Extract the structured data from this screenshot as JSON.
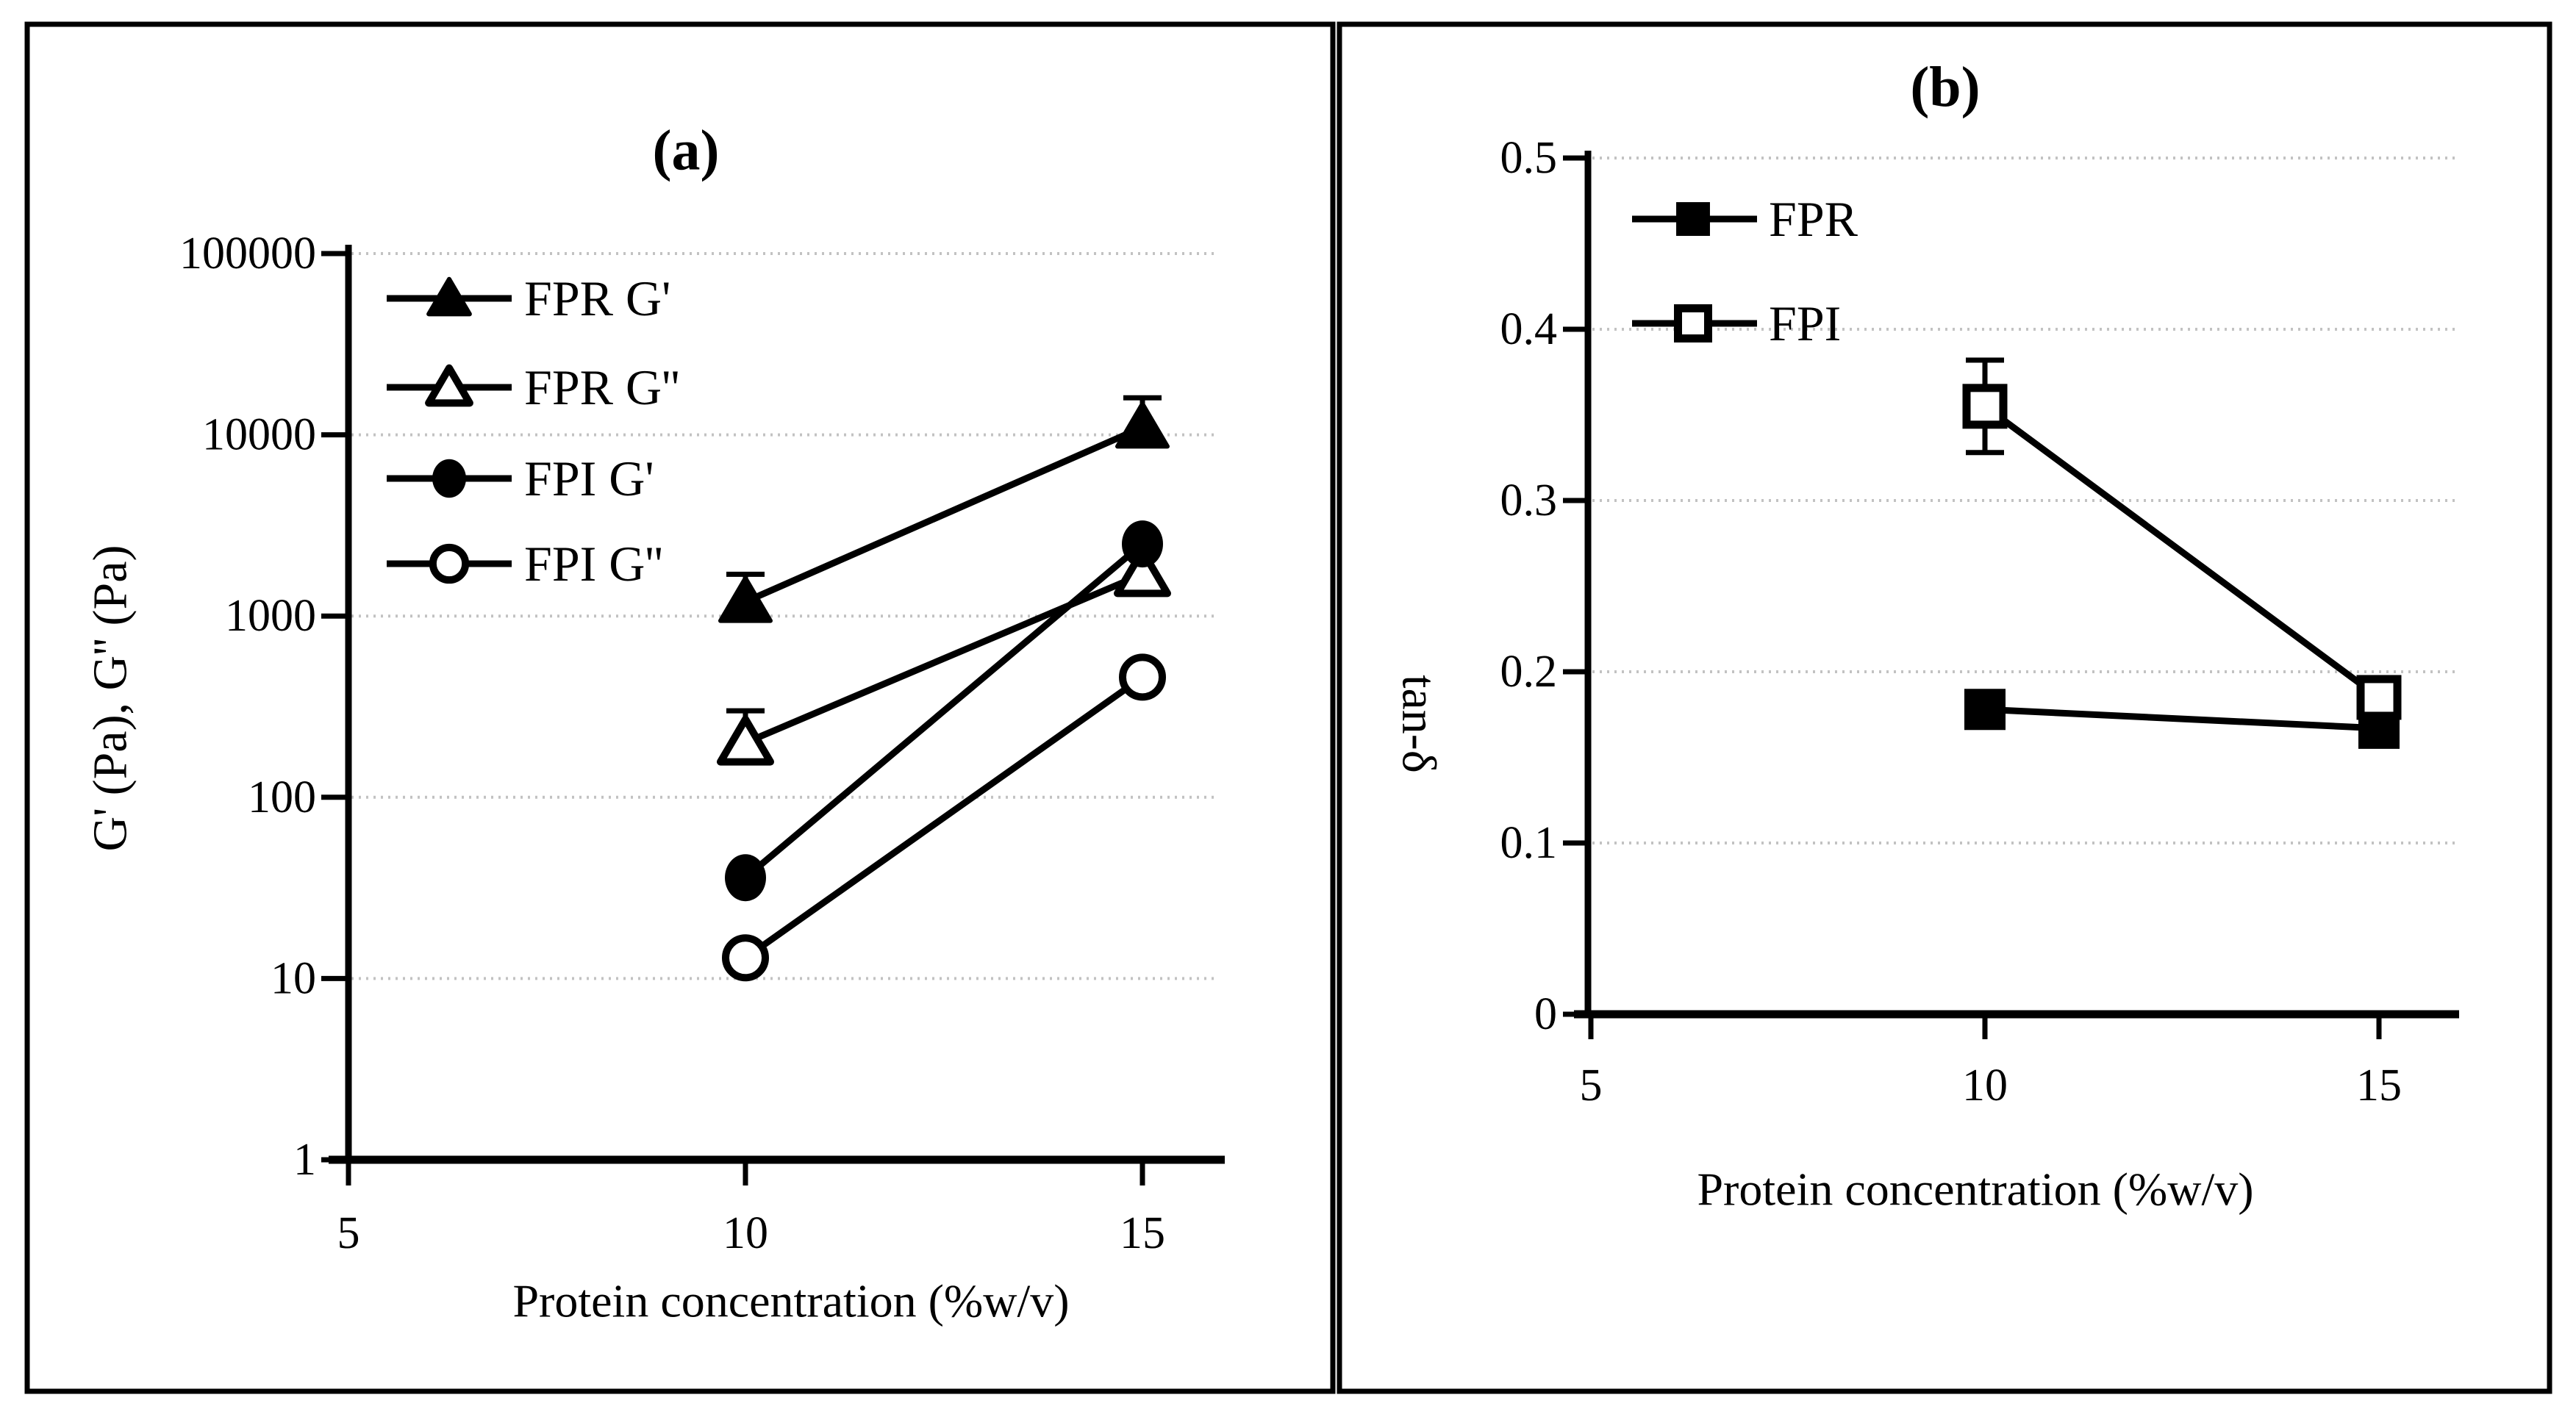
{
  "figure": {
    "background": "#ffffff",
    "frame_color": "#000000",
    "grid_color": "#c2c2c2",
    "series_color": "#000000"
  },
  "chart_data": [
    {
      "type": "line",
      "panel": "a",
      "title": "(a)",
      "xlabel": "Protein concentration (%w/v)",
      "ylabel": "G' (Pa), G'' (Pa)",
      "y_scale": "log",
      "ylim": [
        1,
        100000
      ],
      "xlim": [
        5,
        16
      ],
      "x_ticks": [
        5,
        10,
        15
      ],
      "x_tick_labels": [
        "5",
        "10",
        "15"
      ],
      "y_ticks": [
        1,
        10,
        100,
        1000,
        10000,
        100000
      ],
      "y_tick_labels": [
        "1",
        "10",
        "100",
        "1000",
        "10000",
        "100000"
      ],
      "grid": "horizontal-dotted",
      "legend_position": "upper-left-inside",
      "x": [
        10,
        15
      ],
      "series": [
        {
          "name": "FPR G'",
          "marker": "triangle-filled",
          "values": [
            1200,
            11000
          ],
          "err_upper": [
            1700,
            16000
          ]
        },
        {
          "name": "FPR G''",
          "marker": "triangle-open",
          "values": [
            200,
            1700
          ],
          "err_upper": [
            300,
            null
          ]
        },
        {
          "name": "FPI G'",
          "marker": "circle-filled",
          "values": [
            36,
            2500
          ],
          "err_upper": [
            null,
            null
          ]
        },
        {
          "name": "FPI G''",
          "marker": "circle-open",
          "values": [
            13,
            460
          ],
          "err_upper": [
            null,
            null
          ]
        }
      ]
    },
    {
      "type": "line",
      "panel": "b",
      "title": "(b)",
      "xlabel": "Protein concentration (%w/v)",
      "ylabel": "tan-δ",
      "y_scale": "linear",
      "ylim": [
        0,
        0.5
      ],
      "xlim": [
        5,
        16
      ],
      "x_ticks": [
        5,
        10,
        15
      ],
      "x_tick_labels": [
        "5",
        "10",
        "15"
      ],
      "y_ticks": [
        0,
        0.1,
        0.2,
        0.3,
        0.4,
        0.5
      ],
      "y_tick_labels": [
        "0",
        "0.1",
        "0.2",
        "0.3",
        "0.4",
        "0.5"
      ],
      "grid": "horizontal-dotted",
      "legend_position": "upper-left-inside",
      "x": [
        10,
        15
      ],
      "series": [
        {
          "name": "FPR",
          "marker": "square-filled",
          "values": [
            0.178,
            0.167
          ],
          "err_low": [
            null,
            null
          ],
          "err_upper": [
            null,
            null
          ]
        },
        {
          "name": "FPI",
          "marker": "square-open",
          "values": [
            0.355,
            0.185
          ],
          "err_low": [
            0.328,
            null
          ],
          "err_upper": [
            0.382,
            null
          ]
        }
      ]
    }
  ]
}
